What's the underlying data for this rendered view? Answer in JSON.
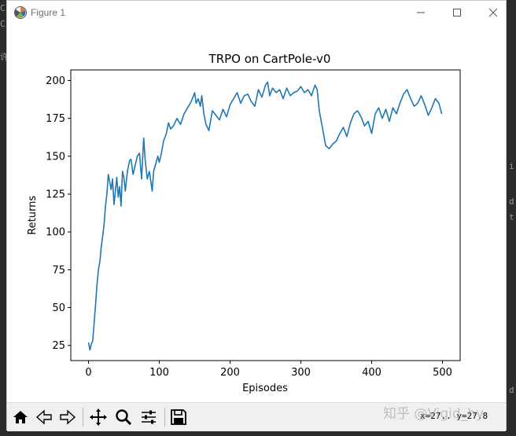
{
  "window": {
    "title": "Figure 1",
    "controls": {
      "minimize": "minimize",
      "maximize": "maximize",
      "close": "close"
    }
  },
  "background_fragments": [
    "C",
    "C",
    "许",
    "i",
    "d",
    "t",
    "d"
  ],
  "toolbar": {
    "buttons": [
      "home-icon",
      "back-icon",
      "forward-icon",
      "pan-icon",
      "zoom-icon",
      "subplots-icon",
      "save-icon"
    ],
    "coordinates": "x=27.. y=27.8"
  },
  "watermark": "知乎 @Vigid_hy",
  "chart_data": {
    "type": "line",
    "title": "TRPO on CartPole-v0",
    "xlabel": "Episodes",
    "ylabel": "Returns",
    "xlim": [
      -25,
      525
    ],
    "ylim": [
      15,
      207
    ],
    "xticks": [
      0,
      100,
      200,
      300,
      400,
      500
    ],
    "yticks": [
      25,
      50,
      75,
      100,
      125,
      150,
      175,
      200
    ],
    "grid": false,
    "line_color": "#1f77b4",
    "series": [
      {
        "x": [
          0,
          2,
          4,
          6,
          8,
          10,
          12,
          14,
          16,
          18,
          20,
          22,
          24,
          26,
          28,
          30,
          32,
          34,
          36,
          38,
          40,
          42,
          44,
          46,
          48,
          50,
          52,
          55,
          58,
          60,
          63,
          66,
          69,
          72,
          75,
          78,
          80,
          83,
          86,
          90,
          92,
          95,
          98,
          100,
          103,
          106,
          110,
          113,
          116,
          120,
          125,
          130,
          135,
          140,
          145,
          150,
          152,
          155,
          158,
          160,
          163,
          166,
          170,
          175,
          180,
          185,
          190,
          195,
          200,
          205,
          210,
          215,
          220,
          225,
          230,
          235,
          240,
          245,
          250,
          253,
          256,
          260,
          265,
          270,
          275,
          280,
          285,
          290,
          295,
          300,
          305,
          310,
          315,
          320,
          323,
          326,
          330,
          335,
          340,
          345,
          350,
          355,
          360,
          365,
          370,
          375,
          380,
          385,
          390,
          395,
          400,
          405,
          410,
          415,
          420,
          425,
          430,
          435,
          440,
          445,
          450,
          455,
          460,
          465,
          470,
          475,
          480,
          485,
          490,
          495,
          499
        ],
        "y": [
          27,
          22,
          26,
          28,
          40,
          52,
          65,
          75,
          80,
          90,
          97,
          105,
          117,
          125,
          138,
          133,
          128,
          135,
          118,
          127,
          136,
          123,
          130,
          117,
          140,
          136,
          127,
          140,
          147,
          148,
          138,
          144,
          150,
          152,
          135,
          162,
          148,
          135,
          140,
          127,
          140,
          145,
          150,
          146,
          152,
          160,
          165,
          172,
          168,
          170,
          175,
          171,
          178,
          182,
          186,
          192,
          185,
          188,
          183,
          190,
          178,
          171,
          167,
          180,
          177,
          174,
          181,
          176,
          184,
          188,
          192,
          185,
          190,
          191,
          186,
          183,
          194,
          189,
          197,
          199,
          190,
          195,
          192,
          194,
          188,
          195,
          190,
          192,
          193,
          196,
          192,
          194,
          190,
          197,
          194,
          180,
          170,
          157,
          155,
          158,
          160,
          165,
          169,
          163,
          172,
          178,
          180,
          176,
          170,
          173,
          165,
          178,
          182,
          175,
          181,
          173,
          182,
          178,
          185,
          191,
          194,
          188,
          183,
          185,
          190,
          184,
          177,
          182,
          188,
          185,
          178
        ]
      }
    ]
  }
}
